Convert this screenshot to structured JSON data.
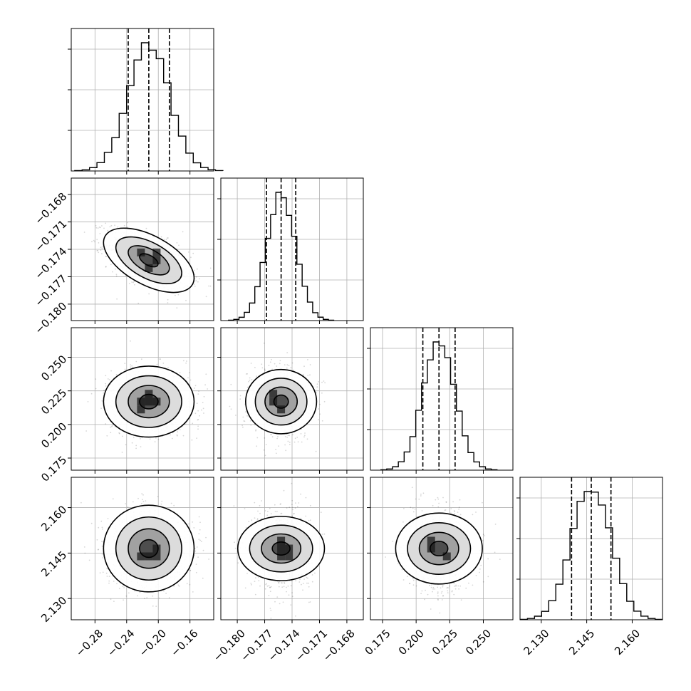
{
  "chart_data": {
    "type": "corner",
    "parameters": [
      {
        "ticks": [
          -0.28,
          -0.24,
          -0.2,
          -0.16
        ],
        "tick_labels": [
          "−0.28",
          "−0.24",
          "−0.20",
          "−0.16"
        ],
        "range": [
          -0.31,
          -0.13
        ],
        "mean": -0.212,
        "sd": 0.026,
        "quantiles": [
          -0.238,
          -0.212,
          -0.186
        ]
      },
      {
        "ticks": [
          -0.18,
          -0.177,
          -0.174,
          -0.171,
          -0.168
        ],
        "tick_labels": [
          "−0.180",
          "−0.177",
          "−0.174",
          "−0.171",
          "−0.168"
        ],
        "range": [
          -0.1818,
          -0.1662
        ],
        "mean": -0.1752,
        "sd": 0.0016,
        "quantiles": [
          -0.1768,
          -0.1752,
          -0.1736
        ]
      },
      {
        "ticks": [
          0.175,
          0.2,
          0.225,
          0.25
        ],
        "tick_labels": [
          "0.175",
          "0.200",
          "0.225",
          "0.250"
        ],
        "range": [
          0.166,
          0.272
        ],
        "mean": 0.217,
        "sd": 0.012,
        "quantiles": [
          0.205,
          0.217,
          0.229
        ]
      },
      {
        "ticks": [
          2.13,
          2.145,
          2.16
        ],
        "tick_labels": [
          "2.130",
          "2.145",
          "2.160"
        ],
        "range": [
          2.123,
          2.17
        ],
        "mean": 2.1465,
        "sd": 0.0065,
        "quantiles": [
          2.14,
          2.1465,
          2.153
        ]
      }
    ],
    "correlations": {
      "1-0": -0.55,
      "2-0": 0.0,
      "2-1": 0.0,
      "3-0": 0.0,
      "3-1": 0.0,
      "3-2": 0.0
    },
    "histogram_bins": 20,
    "quantile_levels": [
      0.16,
      0.5,
      0.84
    ],
    "grid": true,
    "colors": {
      "ink": "#000000",
      "grid": "#b0b0b0"
    }
  }
}
